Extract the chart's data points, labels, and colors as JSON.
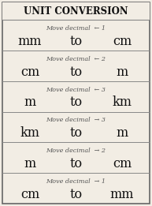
{
  "title": "Unit Conversion",
  "rows": [
    {
      "label": "Move decimal  ← 1",
      "from": "mm",
      "to_word": "to",
      "to_unit": "cm"
    },
    {
      "label": "Move decimal  ← 2",
      "from": "cm",
      "to_word": "to",
      "to_unit": "m"
    },
    {
      "label": "Move decimal  ← 3",
      "from": "m",
      "to_word": "to",
      "to_unit": "km"
    },
    {
      "label": "Move decimal  → 3",
      "from": "km",
      "to_word": "to",
      "to_unit": "m"
    },
    {
      "label": "Move decimal  → 2",
      "from": "m",
      "to_word": "to",
      "to_unit": "cm"
    },
    {
      "label": "Move decimal  → 1",
      "from": "cm",
      "to_word": "to",
      "to_unit": "mm"
    }
  ],
  "bg_color": "#f2ede4",
  "border_color": "#666666",
  "label_fontsize": 5.8,
  "unit_fontsize": 11.5,
  "title_fontsize": 8.5,
  "label_color": "#555555",
  "unit_color": "#111111",
  "title_color": "#111111",
  "line_color": "#888888"
}
